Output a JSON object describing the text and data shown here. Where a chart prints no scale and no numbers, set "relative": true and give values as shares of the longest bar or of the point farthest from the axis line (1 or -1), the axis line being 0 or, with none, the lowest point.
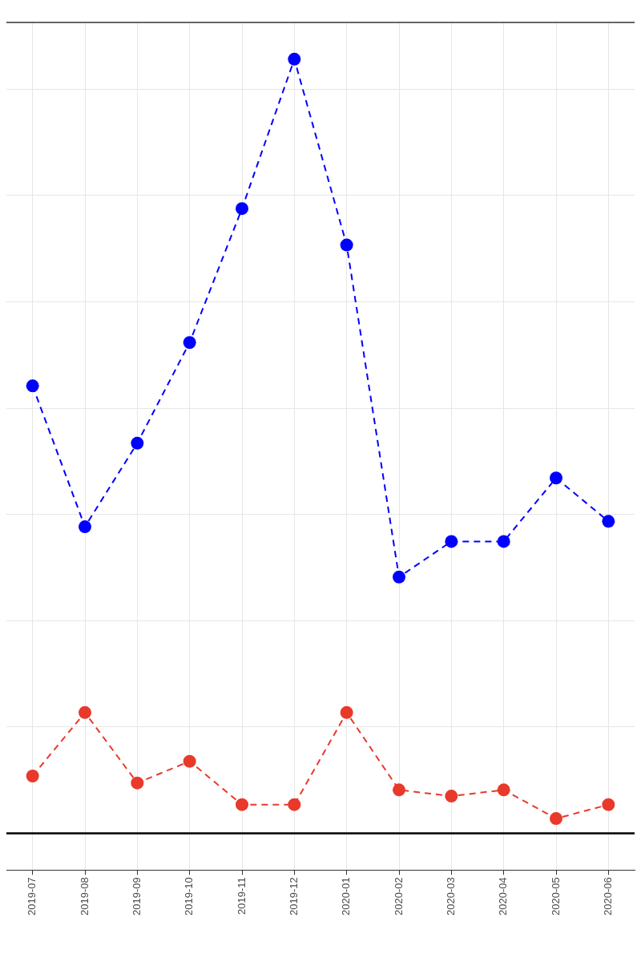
{
  "chart_data": {
    "type": "line",
    "relative": true,
    "categories": [
      "2019-07",
      "2019-08",
      "2019-09",
      "2019-10",
      "2019-11",
      "2019-12",
      "2020-01",
      "2020-02",
      "2020-03",
      "2020-04",
      "2020-05",
      "2020-06"
    ],
    "series": [
      {
        "color": "#0000ff",
        "values": [
          0.578,
          0.396,
          0.504,
          0.634,
          0.807,
          1,
          0.76,
          0.331,
          0.377,
          0.377,
          0.459,
          0.403
        ]
      },
      {
        "color": "#e8392b",
        "values": [
          0.074,
          0.156,
          0.065,
          0.093,
          0.037,
          0.037,
          0.156,
          0.056,
          0.048,
          0.056,
          0.019,
          0.037
        ]
      }
    ],
    "marker": "circle",
    "line_style": "dashed",
    "grid": true,
    "legend": false
  }
}
